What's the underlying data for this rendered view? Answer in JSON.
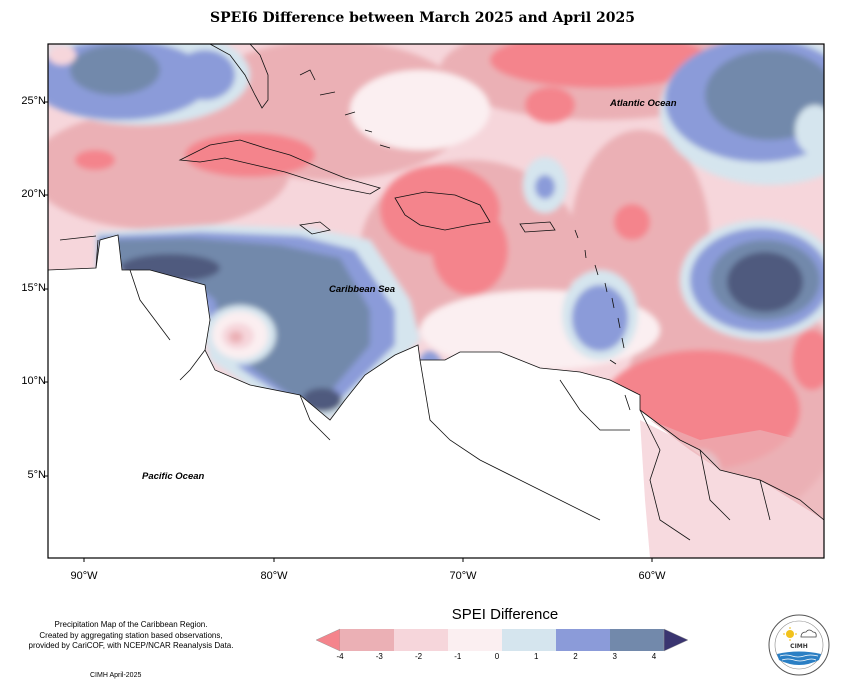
{
  "title": "SPEI6 Difference between March 2025 and April 2025",
  "map": {
    "y_axis_labels": [
      "25°N",
      "20°N",
      "15°N",
      "10°N",
      "5°N"
    ],
    "x_axis_labels": [
      "90°W",
      "80°W",
      "70°W",
      "60°W"
    ],
    "region_labels": {
      "atlantic": "Atlantic Ocean",
      "caribbean": "Caribbean Sea",
      "pacific": "Pacific Ocean"
    },
    "extent": {
      "lon": [
        -92,
        -51.5
      ],
      "lat": [
        0.8,
        28
      ]
    }
  },
  "legend": {
    "title": "SPEI Difference",
    "ticks": [
      "-4",
      "-3",
      "-2",
      "-1",
      "0",
      "1",
      "2",
      "3",
      "4"
    ],
    "colors": [
      "#f4848c",
      "#ebb0b5",
      "#f6d6db",
      "#fbeff1",
      "#d5e5ee",
      "#8b9bd9",
      "#7289ab",
      "#505a7e"
    ]
  },
  "credit_lines": [
    "Precipitation Map of the Caribbean Region.",
    "Created by aggregating station based observations,",
    "provided by CariCOF, with NCEP/NCAR Reanalysis Data."
  ],
  "stamp": "CIMH April-2025",
  "logo": {
    "center_text": "CIMH",
    "icons": [
      "sun-icon",
      "cloud-icon",
      "water-waves-icon"
    ]
  }
}
